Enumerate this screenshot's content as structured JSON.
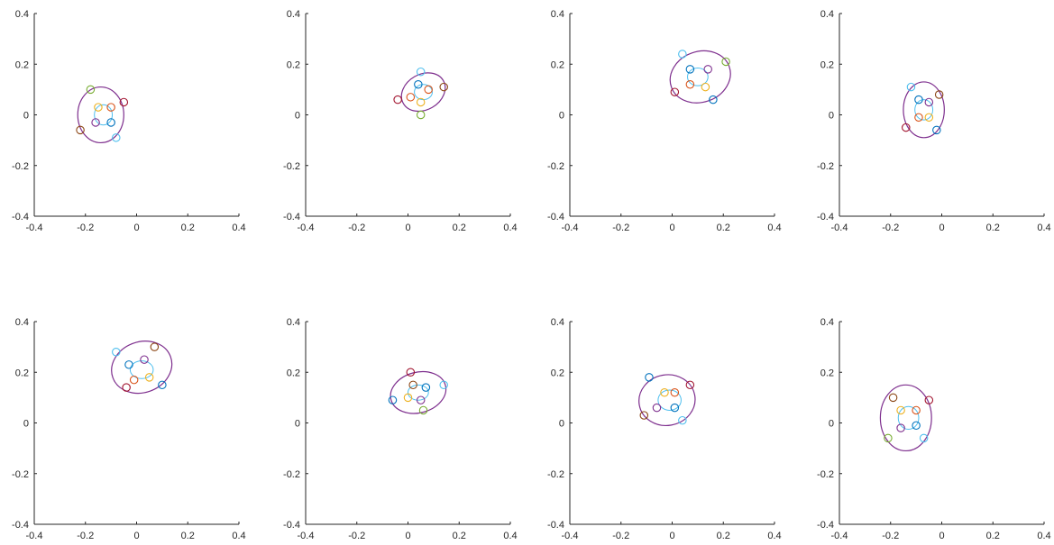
{
  "figure": {
    "layout": "2x4 grid of scatter/ellipse panels"
  },
  "chart_data": [
    {
      "type": "scatter",
      "title": "",
      "xlabel": "",
      "ylabel": "",
      "xlim": [
        -0.4,
        0.4
      ],
      "ylim": [
        -0.4,
        0.4
      ],
      "xticks": [
        "-0.4",
        "-0.2",
        "0",
        "0.2",
        "0.4"
      ],
      "yticks": [
        "0.4",
        "0.2",
        "0",
        "-0.2",
        "-0.4"
      ],
      "grid": false,
      "ellipse_outer": {
        "cx": -0.14,
        "cy": 0.0,
        "rx": 0.09,
        "ry": 0.11,
        "rotation_deg": 0,
        "color": "#7E2F8E"
      },
      "ellipse_inner": {
        "cx": -0.13,
        "cy": 0.0,
        "rx": 0.035,
        "ry": 0.04,
        "color": "#4DBEEE"
      },
      "points": [
        {
          "x": -0.18,
          "y": 0.1,
          "color": "#77AC30"
        },
        {
          "x": -0.05,
          "y": 0.05,
          "color": "#A2142F"
        },
        {
          "x": -0.22,
          "y": -0.06,
          "color": "#8B4513"
        },
        {
          "x": -0.08,
          "y": -0.09,
          "color": "#4DBEEE"
        },
        {
          "x": -0.15,
          "y": 0.03,
          "color": "#EDB120"
        },
        {
          "x": -0.1,
          "y": 0.03,
          "color": "#D95319"
        },
        {
          "x": -0.16,
          "y": -0.03,
          "color": "#7E2F8E"
        },
        {
          "x": -0.1,
          "y": -0.03,
          "color": "#0072BD"
        }
      ]
    },
    {
      "type": "scatter",
      "title": "",
      "xlabel": "",
      "ylabel": "",
      "xlim": [
        -0.4,
        0.4
      ],
      "ylim": [
        -0.4,
        0.4
      ],
      "xticks": [
        "-0.4",
        "-0.2",
        "0",
        "0.2",
        "0.4"
      ],
      "yticks": [
        "0.4",
        "0.2",
        "0",
        "-0.2",
        "-0.4"
      ],
      "grid": false,
      "ellipse_outer": {
        "cx": 0.06,
        "cy": 0.09,
        "rx": 0.09,
        "ry": 0.07,
        "rotation_deg": -30,
        "color": "#7E2F8E"
      },
      "ellipse_inner": {
        "cx": 0.06,
        "cy": 0.09,
        "rx": 0.035,
        "ry": 0.03,
        "color": "#4DBEEE"
      },
      "points": [
        {
          "x": 0.05,
          "y": 0.17,
          "color": "#4DBEEE"
        },
        {
          "x": 0.14,
          "y": 0.11,
          "color": "#8B4513"
        },
        {
          "x": -0.04,
          "y": 0.06,
          "color": "#A2142F"
        },
        {
          "x": 0.05,
          "y": 0.0,
          "color": "#77AC30"
        },
        {
          "x": 0.04,
          "y": 0.12,
          "color": "#0072BD"
        },
        {
          "x": 0.08,
          "y": 0.1,
          "color": "#D95319"
        },
        {
          "x": 0.01,
          "y": 0.07,
          "color": "#D95319"
        },
        {
          "x": 0.05,
          "y": 0.05,
          "color": "#EDB120"
        }
      ]
    },
    {
      "type": "scatter",
      "title": "",
      "xlabel": "",
      "ylabel": "",
      "xlim": [
        -0.4,
        0.4
      ],
      "ylim": [
        -0.4,
        0.4
      ],
      "xticks": [
        "-0.4",
        "-0.2",
        "0",
        "0.2",
        "0.4"
      ],
      "yticks": [
        "0.4",
        "0.2",
        "0",
        "-0.2",
        "-0.4"
      ],
      "grid": false,
      "ellipse_outer": {
        "cx": 0.11,
        "cy": 0.15,
        "rx": 0.12,
        "ry": 0.1,
        "rotation_deg": -20,
        "color": "#7E2F8E"
      },
      "ellipse_inner": {
        "cx": 0.1,
        "cy": 0.15,
        "rx": 0.04,
        "ry": 0.035,
        "color": "#4DBEEE"
      },
      "points": [
        {
          "x": 0.04,
          "y": 0.24,
          "color": "#4DBEEE"
        },
        {
          "x": 0.21,
          "y": 0.21,
          "color": "#77AC30"
        },
        {
          "x": 0.01,
          "y": 0.09,
          "color": "#A2142F"
        },
        {
          "x": 0.16,
          "y": 0.06,
          "color": "#0072BD"
        },
        {
          "x": 0.07,
          "y": 0.18,
          "color": "#0072BD"
        },
        {
          "x": 0.14,
          "y": 0.18,
          "color": "#7E2F8E"
        },
        {
          "x": 0.07,
          "y": 0.12,
          "color": "#D95319"
        },
        {
          "x": 0.13,
          "y": 0.11,
          "color": "#EDB120"
        }
      ]
    },
    {
      "type": "scatter",
      "title": "",
      "xlabel": "",
      "ylabel": "",
      "xlim": [
        -0.4,
        0.4
      ],
      "ylim": [
        -0.4,
        0.4
      ],
      "xticks": [
        "-0.4",
        "-0.2",
        "0",
        "0.2",
        "0.4"
      ],
      "yticks": [
        "0.4",
        "0.2",
        "0",
        "-0.2",
        "-0.4"
      ],
      "grid": false,
      "ellipse_outer": {
        "cx": -0.07,
        "cy": 0.02,
        "rx": 0.08,
        "ry": 0.11,
        "rotation_deg": 0,
        "color": "#7E2F8E"
      },
      "ellipse_inner": {
        "cx": -0.07,
        "cy": 0.02,
        "rx": 0.035,
        "ry": 0.04,
        "color": "#4DBEEE"
      },
      "points": [
        {
          "x": -0.12,
          "y": 0.11,
          "color": "#4DBEEE"
        },
        {
          "x": -0.01,
          "y": 0.08,
          "color": "#8B4513"
        },
        {
          "x": -0.14,
          "y": -0.05,
          "color": "#A2142F"
        },
        {
          "x": -0.02,
          "y": -0.06,
          "color": "#0072BD"
        },
        {
          "x": -0.09,
          "y": 0.06,
          "color": "#0072BD"
        },
        {
          "x": -0.05,
          "y": 0.05,
          "color": "#7E2F8E"
        },
        {
          "x": -0.09,
          "y": -0.01,
          "color": "#D95319"
        },
        {
          "x": -0.05,
          "y": -0.01,
          "color": "#EDB120"
        }
      ]
    },
    {
      "type": "scatter",
      "title": "",
      "xlabel": "",
      "ylabel": "",
      "xlim": [
        -0.4,
        0.4
      ],
      "ylim": [
        -0.4,
        0.4
      ],
      "xticks": [
        "-0.4",
        "-0.2",
        "0",
        "0.2",
        "0.4"
      ],
      "yticks": [
        "0.4",
        "0.2",
        "0",
        "-0.2",
        "-0.4"
      ],
      "grid": false,
      "ellipse_outer": {
        "cx": 0.02,
        "cy": 0.22,
        "rx": 0.12,
        "ry": 0.1,
        "rotation_deg": -20,
        "color": "#7E2F8E"
      },
      "ellipse_inner": {
        "cx": 0.02,
        "cy": 0.21,
        "rx": 0.045,
        "ry": 0.035,
        "color": "#4DBEEE"
      },
      "points": [
        {
          "x": -0.08,
          "y": 0.28,
          "color": "#4DBEEE"
        },
        {
          "x": 0.07,
          "y": 0.3,
          "color": "#8B4513"
        },
        {
          "x": -0.04,
          "y": 0.14,
          "color": "#A2142F"
        },
        {
          "x": 0.1,
          "y": 0.15,
          "color": "#0072BD"
        },
        {
          "x": -0.03,
          "y": 0.23,
          "color": "#0072BD"
        },
        {
          "x": 0.03,
          "y": 0.25,
          "color": "#7E2F8E"
        },
        {
          "x": -0.01,
          "y": 0.17,
          "color": "#D95319"
        },
        {
          "x": 0.05,
          "y": 0.18,
          "color": "#EDB120"
        }
      ]
    },
    {
      "type": "scatter",
      "title": "",
      "xlabel": "",
      "ylabel": "",
      "xlim": [
        -0.4,
        0.4
      ],
      "ylim": [
        -0.4,
        0.4
      ],
      "xticks": [
        "-0.4",
        "-0.2",
        "0",
        "0.2",
        "0.4"
      ],
      "yticks": [
        "0.4",
        "0.2",
        "0",
        "-0.2",
        "-0.4"
      ],
      "grid": false,
      "ellipse_outer": {
        "cx": 0.04,
        "cy": 0.12,
        "rx": 0.11,
        "ry": 0.08,
        "rotation_deg": -15,
        "color": "#7E2F8E"
      },
      "ellipse_inner": {
        "cx": 0.04,
        "cy": 0.12,
        "rx": 0.04,
        "ry": 0.03,
        "color": "#4DBEEE"
      },
      "points": [
        {
          "x": 0.01,
          "y": 0.2,
          "color": "#A2142F"
        },
        {
          "x": 0.14,
          "y": 0.15,
          "color": "#4DBEEE"
        },
        {
          "x": -0.06,
          "y": 0.09,
          "color": "#0072BD"
        },
        {
          "x": 0.06,
          "y": 0.05,
          "color": "#77AC30"
        },
        {
          "x": 0.02,
          "y": 0.15,
          "color": "#8B4513"
        },
        {
          "x": 0.07,
          "y": 0.14,
          "color": "#0072BD"
        },
        {
          "x": 0.0,
          "y": 0.1,
          "color": "#EDB120"
        },
        {
          "x": 0.05,
          "y": 0.09,
          "color": "#7E2F8E"
        }
      ]
    },
    {
      "type": "scatter",
      "title": "",
      "xlabel": "",
      "ylabel": "",
      "xlim": [
        -0.4,
        0.4
      ],
      "ylim": [
        -0.4,
        0.4
      ],
      "xticks": [
        "-0.4",
        "-0.2",
        "0",
        "0.2",
        "0.4"
      ],
      "yticks": [
        "0.4",
        "0.2",
        "0",
        "-0.2",
        "-0.4"
      ],
      "grid": false,
      "ellipse_outer": {
        "cx": -0.02,
        "cy": 0.09,
        "rx": 0.11,
        "ry": 0.1,
        "rotation_deg": -10,
        "color": "#7E2F8E"
      },
      "ellipse_inner": {
        "cx": -0.01,
        "cy": 0.09,
        "rx": 0.045,
        "ry": 0.04,
        "color": "#4DBEEE"
      },
      "points": [
        {
          "x": -0.09,
          "y": 0.18,
          "color": "#0072BD"
        },
        {
          "x": 0.07,
          "y": 0.15,
          "color": "#A2142F"
        },
        {
          "x": -0.11,
          "y": 0.03,
          "color": "#8B4513"
        },
        {
          "x": 0.04,
          "y": 0.01,
          "color": "#4DBEEE"
        },
        {
          "x": -0.03,
          "y": 0.12,
          "color": "#EDB120"
        },
        {
          "x": 0.01,
          "y": 0.12,
          "color": "#D95319"
        },
        {
          "x": -0.06,
          "y": 0.06,
          "color": "#7E2F8E"
        },
        {
          "x": 0.01,
          "y": 0.06,
          "color": "#0072BD"
        }
      ]
    },
    {
      "type": "scatter",
      "title": "",
      "xlabel": "",
      "ylabel": "",
      "xlim": [
        -0.4,
        0.4
      ],
      "ylim": [
        -0.4,
        0.4
      ],
      "xticks": [
        "-0.4",
        "-0.2",
        "0",
        "0.2",
        "0.4"
      ],
      "yticks": [
        "0.4",
        "0.2",
        "0",
        "-0.2",
        "-0.4"
      ],
      "grid": false,
      "ellipse_outer": {
        "cx": -0.14,
        "cy": 0.02,
        "rx": 0.1,
        "ry": 0.13,
        "rotation_deg": 0,
        "color": "#7E2F8E"
      },
      "ellipse_inner": {
        "cx": -0.13,
        "cy": 0.02,
        "rx": 0.04,
        "ry": 0.045,
        "color": "#4DBEEE"
      },
      "points": [
        {
          "x": -0.19,
          "y": 0.1,
          "color": "#8B4513"
        },
        {
          "x": -0.05,
          "y": 0.09,
          "color": "#A2142F"
        },
        {
          "x": -0.21,
          "y": -0.06,
          "color": "#77AC30"
        },
        {
          "x": -0.07,
          "y": -0.06,
          "color": "#4DBEEE"
        },
        {
          "x": -0.16,
          "y": 0.05,
          "color": "#EDB120"
        },
        {
          "x": -0.1,
          "y": 0.05,
          "color": "#D95319"
        },
        {
          "x": -0.16,
          "y": -0.02,
          "color": "#7E2F8E"
        },
        {
          "x": -0.1,
          "y": -0.01,
          "color": "#0072BD"
        }
      ]
    }
  ]
}
